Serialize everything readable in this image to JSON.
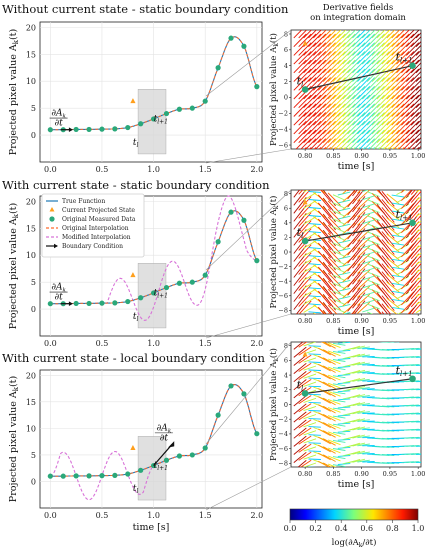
{
  "colors": {
    "true_function": "#1f77b4",
    "projected_state": "#ff9f1c",
    "measured": "#2aa87a",
    "orig_interp": "#ff6b2c",
    "mod_interp": "#d873d8",
    "boundary": "#111111",
    "shade": "#d9d9d9"
  },
  "right_header": {
    "line1": "Derivative fields",
    "line2": "on integration domain"
  },
  "legend": {
    "true_function": "True Function",
    "projected_state": "Current Projected State",
    "measured": "Original Measured Data",
    "orig_interp": "Original Interpolation",
    "mod_interp": "Modified Interpolation",
    "boundary": "Boundary Condition"
  },
  "annotations": {
    "t_l": "t",
    "t_l_sub": "l",
    "t_l1": "t",
    "t_l1_sub": "l+1",
    "deriv": "∂A",
    "deriv_sub": "k",
    "deriv_den": "∂t"
  },
  "colorbar": {
    "ticks": [
      "0.0",
      "0.2",
      "0.4",
      "0.6",
      "0.8",
      "1.0"
    ],
    "label": "log(∂A",
    "label_sub": "k",
    "label_end": "/∂t)"
  },
  "chart_data": [
    {
      "type": "line",
      "title": "Without current state - static boundary condition",
      "ylabel": "Projected pixel value A",
      "ylabel_sub": "k",
      "ylabel_end": "(t)",
      "xlabel": "",
      "xlim": [
        -0.1,
        2.05
      ],
      "ylim": [
        -5,
        21
      ],
      "x_ticks": [
        "0.0",
        "0.5",
        "1.0",
        "1.5",
        "2.0"
      ],
      "y_ticks": [
        "0",
        "5",
        "10",
        "15",
        "20"
      ],
      "measured_x": [
        0.0,
        0.125,
        0.25,
        0.375,
        0.5,
        0.625,
        0.75,
        0.875,
        1.0,
        1.125,
        1.25,
        1.375,
        1.5,
        1.625,
        1.75,
        1.875,
        2.0
      ],
      "measured_y": [
        1.0,
        1.0,
        1.05,
        1.05,
        1.1,
        1.15,
        1.4,
        2.1,
        3.0,
        4.0,
        4.8,
        5.0,
        6.3,
        12.5,
        18.0,
        16.5,
        9.0
      ],
      "projected_state": {
        "x": 0.8,
        "y": 6.3
      },
      "modified_interpolation": "none",
      "boundary_label_x": 0.08,
      "boundary_label_y": 4.0
    },
    {
      "type": "line",
      "title": "With current state - static boundary condition",
      "ylabel": "Projected pixel value A",
      "ylabel_sub": "k",
      "ylabel_end": "(t)",
      "xlabel": "",
      "xlim": [
        -0.1,
        2.05
      ],
      "ylim": [
        -5,
        21
      ],
      "x_ticks": [
        "0.0",
        "0.5",
        "1.0",
        "1.5",
        "2.0"
      ],
      "y_ticks": [
        "0",
        "5",
        "10",
        "15",
        "20"
      ],
      "measured_x": [
        0.0,
        0.125,
        0.25,
        0.375,
        0.5,
        0.625,
        0.75,
        0.875,
        1.0,
        1.125,
        1.25,
        1.375,
        1.5,
        1.625,
        1.75,
        1.875,
        2.0
      ],
      "measured_y": [
        1.0,
        1.0,
        1.05,
        1.05,
        1.1,
        1.15,
        1.4,
        2.1,
        3.0,
        4.0,
        4.8,
        5.0,
        6.3,
        12.5,
        18.0,
        16.5,
        9.0
      ],
      "projected_state": {
        "x": 0.8,
        "y": 6.3
      },
      "modified_interpolation": "wavy_right",
      "boundary_label_x": 0.08,
      "boundary_label_y": 4.0
    },
    {
      "type": "line",
      "title": "With current state - local boundary condition",
      "ylabel": "Projected pixel value A",
      "ylabel_sub": "k",
      "ylabel_end": "(t)",
      "xlabel": "time [s]",
      "xlim": [
        -0.1,
        2.05
      ],
      "ylim": [
        -5,
        21
      ],
      "x_ticks": [
        "0.0",
        "0.5",
        "1.0",
        "1.5",
        "2.0"
      ],
      "y_ticks": [
        "0",
        "5",
        "10",
        "15",
        "20"
      ],
      "measured_x": [
        0.0,
        0.125,
        0.25,
        0.375,
        0.5,
        0.625,
        0.75,
        0.875,
        1.0,
        1.125,
        1.25,
        1.375,
        1.5,
        1.625,
        1.75,
        1.875,
        2.0
      ],
      "measured_y": [
        1.0,
        1.0,
        1.05,
        1.05,
        1.1,
        1.15,
        1.4,
        2.1,
        3.0,
        4.0,
        4.8,
        5.0,
        6.3,
        12.5,
        18.0,
        16.5,
        9.0
      ],
      "projected_state": {
        "x": 0.8,
        "y": 6.3
      },
      "modified_interpolation": "wavy_left",
      "boundary_label_x": 1.1,
      "boundary_label_y": 10.0
    },
    {
      "type": "line",
      "title": "",
      "ylabel": "Projected pixel value A",
      "ylabel_sub": "k",
      "ylabel_end": "(t)",
      "xlabel": "time [s]",
      "xlim": [
        0.775,
        1.005
      ],
      "ylim": [
        -6.5,
        8.5
      ],
      "x_ticks": [
        "0.80",
        "0.85",
        "0.90",
        "0.95",
        "1.00"
      ],
      "y_ticks": [
        "−6",
        "−4",
        "−2",
        "0",
        "2",
        "4",
        "6",
        "8"
      ],
      "y_tick_values": [
        -6,
        -4,
        -2,
        0,
        2,
        4,
        6,
        8
      ],
      "x_tick_values": [
        0.8,
        0.85,
        0.9,
        0.95,
        1.0
      ],
      "state_line": [
        [
          0.8,
          1.0
        ],
        [
          0.99,
          4.0
        ]
      ],
      "field": "regular"
    },
    {
      "type": "line",
      "title": "",
      "ylabel": "Projected pixel value A",
      "ylabel_sub": "k",
      "ylabel_end": "(t)",
      "xlabel": "time [s]",
      "xlim": [
        0.775,
        1.005
      ],
      "ylim": [
        -8.5,
        8.5
      ],
      "x_ticks": [
        "0.80",
        "0.85",
        "0.90",
        "0.95",
        "1.00"
      ],
      "y_ticks": [
        "−8",
        "−6",
        "−4",
        "−2",
        "0",
        "2",
        "4",
        "6",
        "8"
      ],
      "y_tick_values": [
        -8,
        -6,
        -4,
        -2,
        0,
        2,
        4,
        6,
        8
      ],
      "x_tick_values": [
        0.8,
        0.85,
        0.9,
        0.95,
        1.0
      ],
      "state_line": [
        [
          0.8,
          1.5
        ],
        [
          0.99,
          4.0
        ]
      ],
      "field": "wavy"
    },
    {
      "type": "line",
      "title": "",
      "ylabel": "Projected pixel value A",
      "ylabel_sub": "k",
      "ylabel_end": "(t)",
      "xlabel": "time [s]",
      "xlim": [
        0.775,
        1.005
      ],
      "ylim": [
        -8.5,
        8.5
      ],
      "x_ticks": [
        "0.80",
        "0.85",
        "0.90",
        "0.95",
        "1.00"
      ],
      "y_ticks": [
        "−8",
        "−6",
        "−4",
        "−2",
        "0",
        "2",
        "4",
        "6",
        "8"
      ],
      "y_tick_values": [
        -8,
        -6,
        -4,
        -2,
        0,
        2,
        4,
        6,
        8
      ],
      "x_tick_values": [
        0.8,
        0.85,
        0.9,
        0.95,
        1.0
      ],
      "state_line": [
        [
          0.8,
          1.5
        ],
        [
          0.99,
          3.5
        ]
      ],
      "field": "wavy_flat"
    }
  ]
}
